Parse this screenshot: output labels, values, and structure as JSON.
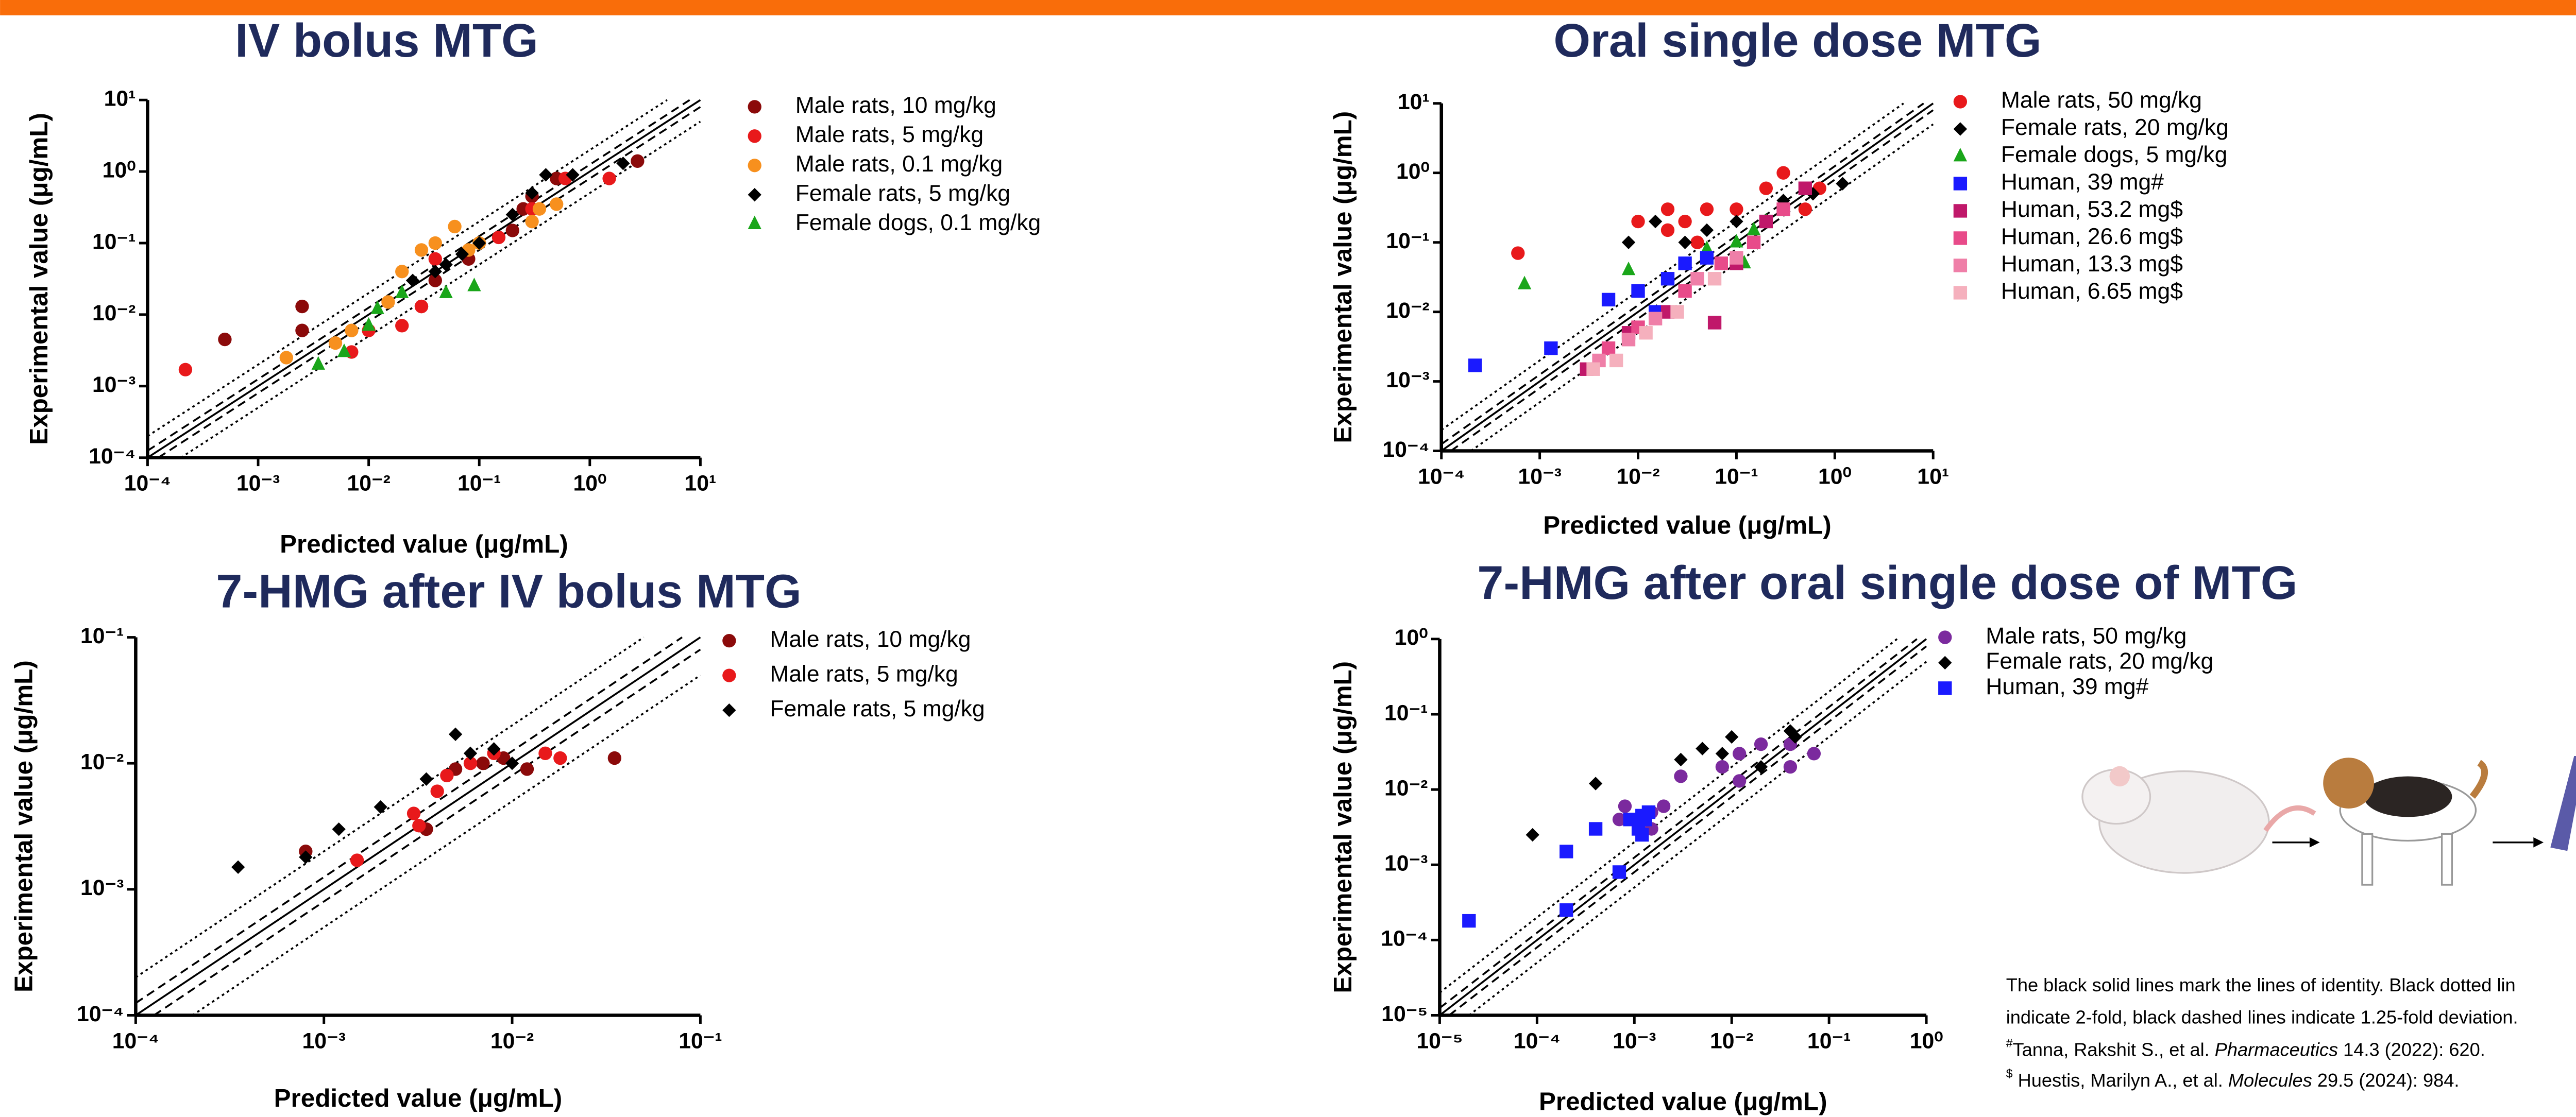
{
  "chart_data": [
    {
      "type": "scatter",
      "title": "IV bolus MTG",
      "x_label": "Predicted value (μg/mL)",
      "y_label": "Experimental value (μg/mL)",
      "log_x": true,
      "log_y": true,
      "xlim": [
        0.0001,
        10
      ],
      "ylim": [
        0.0001,
        10
      ],
      "xticks": [
        {
          "value": 0.0001,
          "label": "10⁻⁴"
        },
        {
          "value": 0.001,
          "label": "10⁻³"
        },
        {
          "value": 0.01,
          "label": "10⁻²"
        },
        {
          "value": 0.1,
          "label": "10⁻¹"
        },
        {
          "value": 1,
          "label": "10⁰"
        },
        {
          "value": 10,
          "label": "10¹"
        }
      ],
      "yticks": [
        {
          "value": 0.0001,
          "label": "10⁻⁴"
        },
        {
          "value": 0.001,
          "label": "10⁻³"
        },
        {
          "value": 0.01,
          "label": "10⁻²"
        },
        {
          "value": 0.1,
          "label": "10⁻¹"
        },
        {
          "value": 1,
          "label": "10⁰"
        },
        {
          "value": 10,
          "label": "10¹"
        }
      ],
      "fold_lines": [
        {
          "factor": 1,
          "style": "solid"
        },
        {
          "factor": 1.25,
          "style": "dashed"
        },
        {
          "factor": 2,
          "style": "dotted"
        }
      ],
      "series": [
        {
          "name": "Male rats, 10 mg/kg",
          "color": "#8b0a0a",
          "marker": "circle",
          "x": [
            0.0005,
            0.0025,
            0.0025,
            0.03,
            0.04,
            0.08,
            0.2,
            0.25,
            0.3,
            0.5,
            2.7
          ],
          "values": [
            0.0045,
            0.006,
            0.013,
            0.013,
            0.03,
            0.06,
            0.15,
            0.3,
            0.45,
            0.8,
            1.4
          ]
        },
        {
          "name": "Male rats, 5 mg/kg",
          "color": "#e8191b",
          "marker": "circle",
          "x": [
            0.00022,
            0.007,
            0.01,
            0.02,
            0.03,
            0.04,
            0.15,
            0.3,
            0.6,
            1.5
          ],
          "values": [
            0.0017,
            0.003,
            0.006,
            0.007,
            0.013,
            0.06,
            0.12,
            0.3,
            0.8,
            0.8
          ]
        },
        {
          "name": "Male rats, 0.1 mg/kg",
          "color": "#f7901e",
          "marker": "circle",
          "x": [
            0.0018,
            0.005,
            0.007,
            0.015,
            0.02,
            0.03,
            0.04,
            0.06,
            0.08,
            0.1,
            0.3,
            0.35,
            0.5
          ],
          "values": [
            0.0025,
            0.004,
            0.006,
            0.015,
            0.04,
            0.08,
            0.1,
            0.17,
            0.08,
            0.1,
            0.2,
            0.3,
            0.35
          ]
        },
        {
          "name": "Female rats, 5 mg/kg",
          "color": "#000000",
          "marker": "diamond",
          "x": [
            0.025,
            0.04,
            0.05,
            0.07,
            0.1,
            0.2,
            0.3,
            0.4,
            0.7,
            2
          ],
          "values": [
            0.03,
            0.04,
            0.05,
            0.07,
            0.1,
            0.25,
            0.5,
            0.9,
            0.9,
            1.3
          ]
        },
        {
          "name": "Female dogs, 0.1 mg/kg",
          "color": "#1aa61a",
          "marker": "triangle",
          "x": [
            0.0035,
            0.006,
            0.01,
            0.012,
            0.02,
            0.05,
            0.09
          ],
          "values": [
            0.002,
            0.003,
            0.007,
            0.012,
            0.02,
            0.02,
            0.025
          ]
        }
      ]
    },
    {
      "type": "scatter",
      "title": "Oral single dose MTG",
      "x_label": "Predicted value (μg/mL)",
      "y_label": "Experimental value (μg/mL)",
      "log_x": true,
      "log_y": true,
      "xlim": [
        0.0001,
        10
      ],
      "ylim": [
        0.0001,
        10
      ],
      "xticks": [
        {
          "value": 0.0001,
          "label": "10⁻⁴"
        },
        {
          "value": 0.001,
          "label": "10⁻³"
        },
        {
          "value": 0.01,
          "label": "10⁻²"
        },
        {
          "value": 0.1,
          "label": "10⁻¹"
        },
        {
          "value": 1,
          "label": "10⁰"
        },
        {
          "value": 10,
          "label": "10¹"
        }
      ],
      "yticks": [
        {
          "value": 0.0001,
          "label": "10⁻⁴"
        },
        {
          "value": 0.001,
          "label": "10⁻³"
        },
        {
          "value": 0.01,
          "label": "10⁻²"
        },
        {
          "value": 0.1,
          "label": "10⁻¹"
        },
        {
          "value": 1,
          "label": "10⁰"
        },
        {
          "value": 10,
          "label": "10¹"
        }
      ],
      "fold_lines": [
        {
          "factor": 1,
          "style": "solid"
        },
        {
          "factor": 1.25,
          "style": "dashed"
        },
        {
          "factor": 2,
          "style": "dotted"
        }
      ],
      "series": [
        {
          "name": "Male rats, 50 mg/kg",
          "color": "#e8191b",
          "marker": "circle",
          "x": [
            0.0006,
            0.01,
            0.02,
            0.02,
            0.03,
            0.04,
            0.05,
            0.1,
            0.2,
            0.3,
            0.5,
            0.7
          ],
          "values": [
            0.07,
            0.2,
            0.15,
            0.3,
            0.2,
            0.1,
            0.3,
            0.3,
            0.6,
            1,
            0.3,
            0.6
          ]
        },
        {
          "name": "Female rats, 20 mg/kg",
          "color": "#000000",
          "marker": "diamond",
          "x": [
            0.008,
            0.015,
            0.03,
            0.05,
            0.1,
            0.3,
            0.6,
            1.2
          ],
          "values": [
            0.1,
            0.2,
            0.1,
            0.15,
            0.2,
            0.4,
            0.5,
            0.7
          ]
        },
        {
          "name": "Female dogs, 5 mg/kg",
          "color": "#1aa61a",
          "marker": "triangle",
          "x": [
            0.0007,
            0.008,
            0.05,
            0.1,
            0.12,
            0.15,
            0.2
          ],
          "values": [
            0.025,
            0.04,
            0.08,
            0.1,
            0.05,
            0.15,
            0.2
          ]
        },
        {
          "name": "Human, 39 mg#",
          "color": "#1a1aff",
          "marker": "square",
          "x": [
            0.00022,
            0.0013,
            0.005,
            0.01,
            0.015,
            0.02,
            0.03,
            0.05
          ],
          "values": [
            0.0017,
            0.003,
            0.015,
            0.02,
            0.01,
            0.03,
            0.05,
            0.06
          ]
        },
        {
          "name": "Human, 53.2 mg$",
          "color": "#c0186a",
          "marker": "square",
          "x": [
            0.003,
            0.008,
            0.02,
            0.06,
            0.1,
            0.2,
            0.5
          ],
          "values": [
            0.0015,
            0.005,
            0.01,
            0.007,
            0.05,
            0.2,
            0.6
          ]
        },
        {
          "name": "Human, 26.6 mg$",
          "color": "#e84b8a",
          "marker": "square",
          "x": [
            0.005,
            0.01,
            0.03,
            0.07,
            0.15,
            0.3
          ],
          "values": [
            0.003,
            0.006,
            0.02,
            0.05,
            0.1,
            0.3
          ]
        },
        {
          "name": "Human, 13.3 mg$",
          "color": "#ef7fa8",
          "marker": "square",
          "x": [
            0.004,
            0.008,
            0.015,
            0.04,
            0.1
          ],
          "values": [
            0.002,
            0.004,
            0.008,
            0.03,
            0.06
          ]
        },
        {
          "name": "Human, 6.65 mg$",
          "color": "#f5b0bd",
          "marker": "square",
          "x": [
            0.0035,
            0.006,
            0.012,
            0.025,
            0.06
          ],
          "values": [
            0.0015,
            0.002,
            0.005,
            0.01,
            0.03
          ]
        }
      ]
    },
    {
      "type": "scatter",
      "title": "7-HMG after IV bolus MTG",
      "x_label": "Predicted value (μg/mL)",
      "y_label": "Experimental value (μg/mL)",
      "log_x": true,
      "log_y": true,
      "xlim": [
        0.0001,
        0.1
      ],
      "ylim": [
        0.0001,
        0.1
      ],
      "xticks": [
        {
          "value": 0.0001,
          "label": "10⁻⁴"
        },
        {
          "value": 0.001,
          "label": "10⁻³"
        },
        {
          "value": 0.01,
          "label": "10⁻²"
        },
        {
          "value": 0.1,
          "label": "10⁻¹"
        }
      ],
      "yticks": [
        {
          "value": 0.0001,
          "label": "10⁻⁴"
        },
        {
          "value": 0.001,
          "label": "10⁻³"
        },
        {
          "value": 0.01,
          "label": "10⁻²"
        },
        {
          "value": 0.1,
          "label": "10⁻¹"
        }
      ],
      "fold_lines": [
        {
          "factor": 1,
          "style": "solid"
        },
        {
          "factor": 1.25,
          "style": "dashed"
        },
        {
          "factor": 2,
          "style": "dotted"
        }
      ],
      "series": [
        {
          "name": "Male rats, 10 mg/kg",
          "color": "#8b0a0a",
          "marker": "circle",
          "x": [
            0.0008,
            0.0035,
            0.005,
            0.007,
            0.009,
            0.012,
            0.035
          ],
          "values": [
            0.002,
            0.003,
            0.009,
            0.01,
            0.011,
            0.009,
            0.011
          ]
        },
        {
          "name": "Male rats, 5 mg/kg",
          "color": "#e8191b",
          "marker": "circle",
          "x": [
            0.0015,
            0.003,
            0.0032,
            0.004,
            0.0045,
            0.006,
            0.008,
            0.015,
            0.018
          ],
          "values": [
            0.0017,
            0.004,
            0.0032,
            0.006,
            0.008,
            0.01,
            0.012,
            0.012,
            0.011
          ]
        },
        {
          "name": "Female rats, 5 mg/kg",
          "color": "#000000",
          "marker": "diamond",
          "x": [
            0.00035,
            0.0008,
            0.0012,
            0.002,
            0.0035,
            0.005,
            0.006,
            0.008,
            0.01
          ],
          "values": [
            0.0015,
            0.0018,
            0.003,
            0.0045,
            0.0075,
            0.017,
            0.012,
            0.013,
            0.01
          ]
        }
      ]
    },
    {
      "type": "scatter",
      "title": "7-HMG after oral single dose of MTG",
      "x_label": "Predicted value (μg/mL)",
      "y_label": "Experimental value (μg/mL)",
      "log_x": true,
      "log_y": true,
      "xlim": [
        1e-05,
        1
      ],
      "ylim": [
        1e-05,
        1
      ],
      "xticks": [
        {
          "value": 1e-05,
          "label": "10⁻⁵"
        },
        {
          "value": 0.0001,
          "label": "10⁻⁴"
        },
        {
          "value": 0.001,
          "label": "10⁻³"
        },
        {
          "value": 0.01,
          "label": "10⁻²"
        },
        {
          "value": 0.1,
          "label": "10⁻¹"
        },
        {
          "value": 1,
          "label": "10⁰"
        }
      ],
      "yticks": [
        {
          "value": 1e-05,
          "label": "10⁻⁵"
        },
        {
          "value": 0.0001,
          "label": "10⁻⁴"
        },
        {
          "value": 0.001,
          "label": "10⁻³"
        },
        {
          "value": 0.01,
          "label": "10⁻²"
        },
        {
          "value": 0.1,
          "label": "10⁻¹"
        },
        {
          "value": 1,
          "label": "10⁰"
        }
      ],
      "fold_lines": [
        {
          "factor": 1,
          "style": "solid"
        },
        {
          "factor": 1.25,
          "style": "dashed"
        },
        {
          "factor": 2,
          "style": "dotted"
        }
      ],
      "series": [
        {
          "name": "Male rats, 50 mg/kg",
          "color": "#7b2a9e",
          "marker": "circle",
          "x": [
            0.0007,
            0.0008,
            0.0015,
            0.0015,
            0.002,
            0.003,
            0.008,
            0.012,
            0.012,
            0.02,
            0.04,
            0.04,
            0.07
          ],
          "values": [
            0.004,
            0.006,
            0.003,
            0.005,
            0.006,
            0.015,
            0.02,
            0.013,
            0.03,
            0.04,
            0.04,
            0.02,
            0.03
          ]
        },
        {
          "name": "Female rats, 20 mg/kg",
          "color": "#000000",
          "marker": "diamond",
          "x": [
            9e-05,
            0.0004,
            0.003,
            0.005,
            0.008,
            0.01,
            0.02,
            0.04,
            0.045
          ],
          "values": [
            0.0025,
            0.012,
            0.025,
            0.035,
            0.03,
            0.05,
            0.02,
            0.06,
            0.05
          ]
        },
        {
          "name": "Human, 39 mg#",
          "color": "#1a1aff",
          "marker": "square",
          "x": [
            2e-05,
            0.0002,
            0.0002,
            0.0004,
            0.0007,
            0.0009,
            0.0011,
            0.0012,
            0.0012,
            0.0013,
            0.0014
          ],
          "values": [
            0.00018,
            0.00025,
            0.0015,
            0.003,
            0.0008,
            0.004,
            0.003,
            0.0025,
            0.0045,
            0.004,
            0.005
          ]
        }
      ]
    }
  ],
  "footnotes": {
    "lines": [
      "The black solid lines mark the lines of identity. Black dotted lin",
      "indicate 2-fold, black dashed lines indicate 1.25-fold deviation."
    ],
    "refs": [
      {
        "mark": "#",
        "authors": "Tanna, Rakshit S., et al. ",
        "journal": "Pharmaceutics",
        "details": " 14.3 (2022): 620."
      },
      {
        "mark": "$",
        "authors": " Huestis, Marilyn A., et al. ",
        "journal": "Molecules",
        "details": " 29.5 (2024): 984."
      }
    ]
  }
}
